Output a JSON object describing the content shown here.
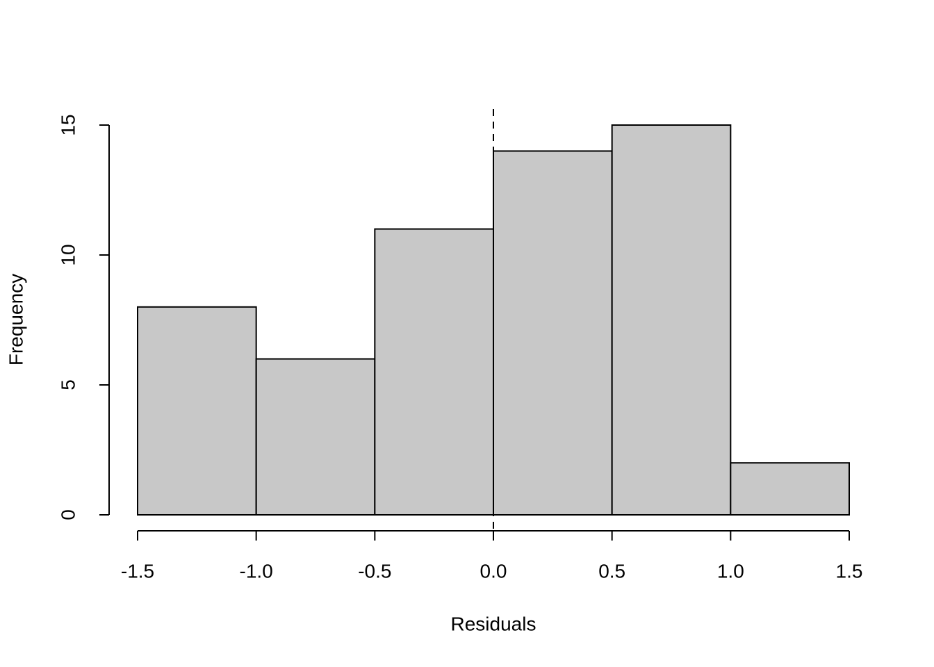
{
  "chart_data": {
    "type": "histogram",
    "x_label": "Residuals",
    "y_label": "Frequency",
    "bins": [
      -1.5,
      -1,
      -0.5,
      0,
      0.5,
      1,
      1.5
    ],
    "counts": [
      8,
      6,
      11,
      14,
      15,
      2
    ],
    "color": "#c8c8c8",
    "xlim": [
      -1.5,
      1.5
    ],
    "xticks": [
      -1.5,
      {
        "value": -1,
        "label": "-1.0"
      },
      -0.5,
      {
        "value": 0,
        "label": "0.0"
      },
      0.5,
      {
        "value": 1,
        "label": "1.0"
      },
      1.5
    ],
    "ylim": [
      0,
      15
    ],
    "yticks": [
      0,
      5,
      10,
      15
    ],
    "vline": 0,
    "vline_style": "dashed",
    "grid": false
  }
}
